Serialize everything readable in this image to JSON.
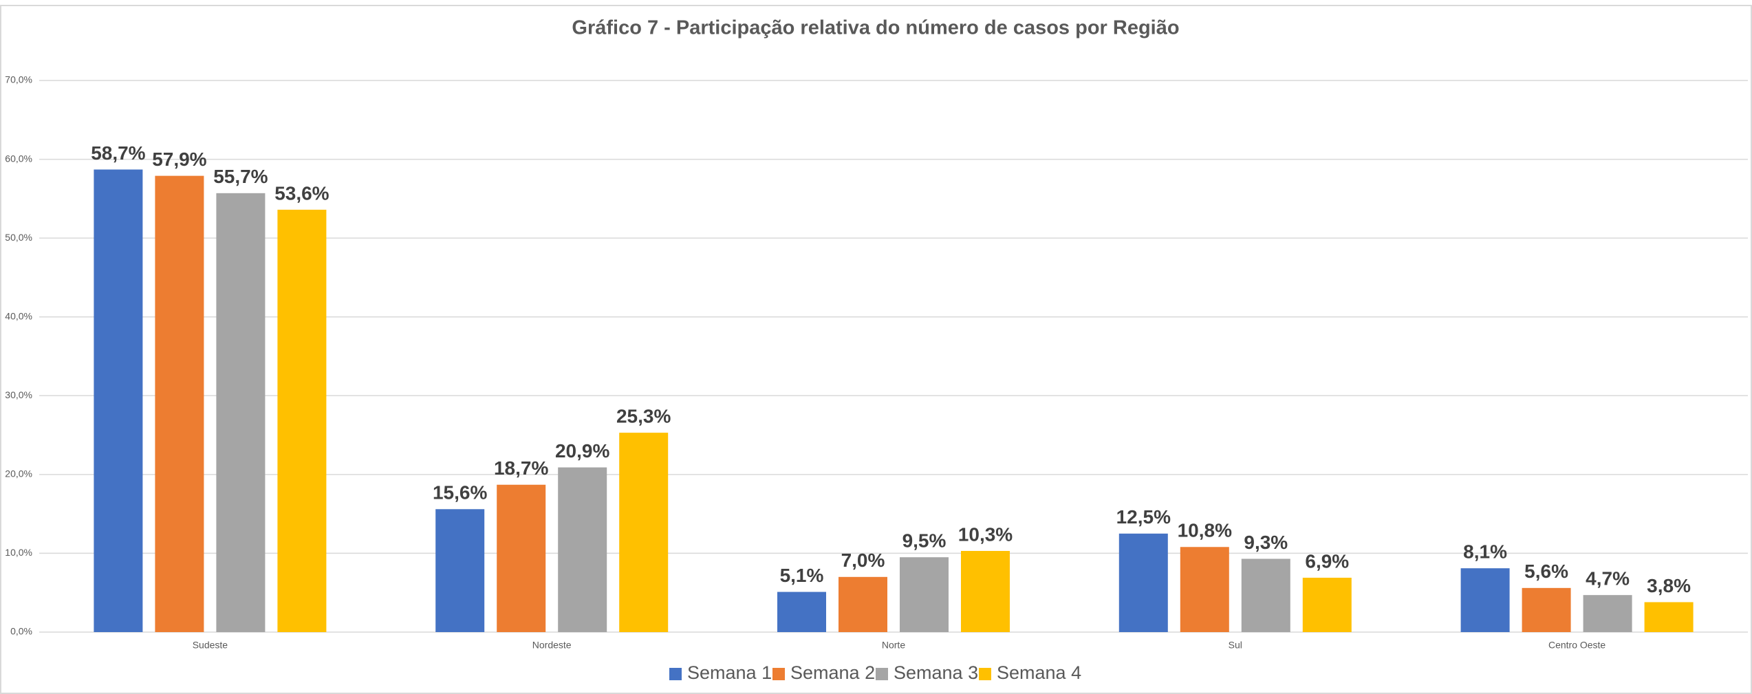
{
  "chart_data": {
    "type": "bar",
    "title": "Gráfico 7 - Participação relativa do número de casos por Região",
    "categories": [
      "Sudeste",
      "Nordeste",
      "Norte",
      "Sul",
      "Centro Oeste"
    ],
    "series": [
      {
        "name": "Semana 1",
        "color": "#4472c4",
        "values": [
          58.7,
          15.6,
          5.1,
          12.5,
          8.1
        ],
        "value_labels": [
          "58,7%",
          "15,6%",
          "5,1%",
          "12,5%",
          "8,1%"
        ]
      },
      {
        "name": "Semana 2",
        "color": "#ed7d31",
        "values": [
          57.9,
          18.7,
          7.0,
          10.8,
          5.6
        ],
        "value_labels": [
          "57,9%",
          "18,7%",
          "7,0%",
          "10,8%",
          "5,6%"
        ]
      },
      {
        "name": "Semana 3",
        "color": "#a5a5a5",
        "values": [
          55.7,
          20.9,
          9.5,
          9.3,
          4.7
        ],
        "value_labels": [
          "55,7%",
          "20,9%",
          "9,5%",
          "9,3%",
          "4,7%"
        ]
      },
      {
        "name": "Semana 4",
        "color": "#ffc000",
        "values": [
          53.6,
          25.3,
          10.3,
          6.9,
          3.8
        ],
        "value_labels": [
          "53,6%",
          "25,3%",
          "10,3%",
          "6,9%",
          "3,8%"
        ]
      }
    ],
    "ylim": [
      0,
      70
    ],
    "yticks": [
      {
        "value": 0,
        "label": "0,0%"
      },
      {
        "value": 10,
        "label": "10,0%"
      },
      {
        "value": 20,
        "label": "20,0%"
      },
      {
        "value": 30,
        "label": "30,0%"
      },
      {
        "value": 40,
        "label": "40,0%"
      },
      {
        "value": 50,
        "label": "50,0%"
      },
      {
        "value": 60,
        "label": "60,0%"
      },
      {
        "value": 70,
        "label": "70,0%"
      }
    ],
    "grid": true,
    "legend": "bottom"
  }
}
